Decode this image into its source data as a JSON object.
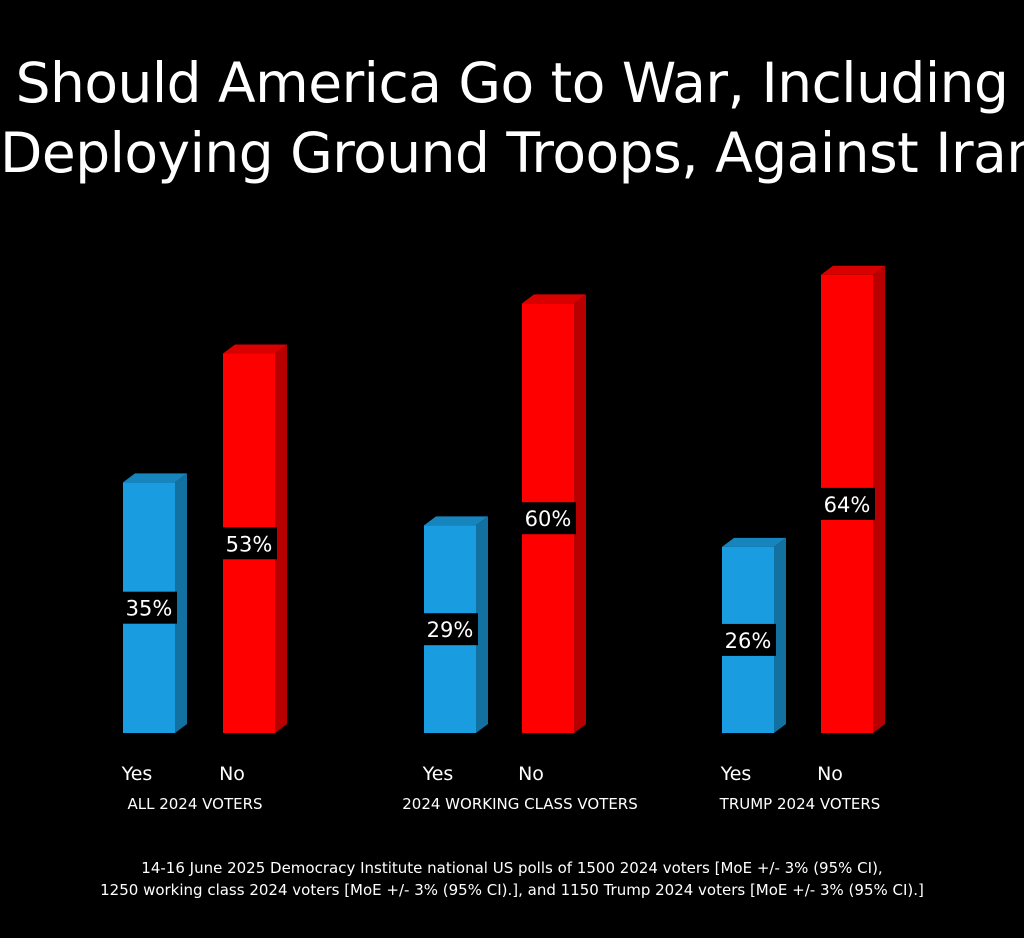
{
  "title": {
    "line1": "Should America Go to War, Including",
    "line2": "Deploying Ground Troops, Against Iran?"
  },
  "colors": {
    "background": "#000000",
    "yes": "#1a9de0",
    "no": "#ff0000",
    "text": "#ffffff"
  },
  "chart_data": {
    "type": "bar",
    "title": "Should America Go to War, Including Deploying Ground Troops, Against Iran?",
    "categories": [
      "ALL 2024 VOTERS",
      "2024 WORKING CLASS VOTERS",
      "TRUMP 2024 VOTERS"
    ],
    "bar_labels": [
      "Yes",
      "No"
    ],
    "series": [
      {
        "name": "Yes",
        "values": [
          35,
          29,
          26
        ],
        "labels": [
          "35%",
          "29%",
          "26%"
        ]
      },
      {
        "name": "No",
        "values": [
          53,
          60,
          64
        ],
        "labels": [
          "53%",
          "60%",
          "64%"
        ]
      }
    ],
    "ylim": [
      0,
      70
    ],
    "grid": false,
    "legend": "none"
  },
  "footnote": {
    "line1": "14-16 June 2025 Democracy Institute national US polls of 1500 2024 voters [MoE +/- 3% (95% CI),",
    "line2": "1250 working class 2024 voters [MoE +/- 3% (95% CI).], and 1150 Trump 2024 voters [MoE +/- 3% (95% CI).]"
  }
}
